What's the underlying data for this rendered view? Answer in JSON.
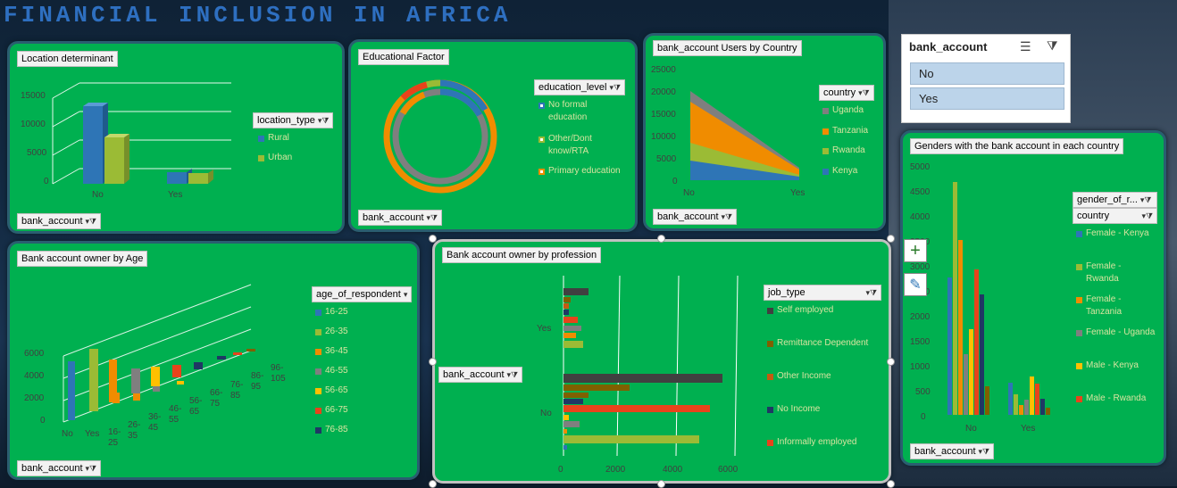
{
  "dashboard": {
    "title": "FINANCIAL INCLUSION IN AFRICA"
  },
  "location": {
    "title": "Location determinant",
    "filter": "location_type",
    "axis_filter": "bank_account",
    "y_ticks": [
      "15000",
      "10000",
      "5000",
      "0"
    ],
    "legend": [
      {
        "label": "Rural",
        "color": "#2e75b6"
      },
      {
        "label": "Urban",
        "color": "#9bbb35"
      }
    ]
  },
  "education": {
    "title": "Educational Factor",
    "filter": "education_level",
    "axis_filter": "bank_account",
    "legend": [
      {
        "label": "No formal education",
        "color": "#2e75b6"
      },
      {
        "label": "Other/Dont know/RTA",
        "color": "#9bbb35"
      },
      {
        "label": "Primary education",
        "color": "#f08c00"
      }
    ]
  },
  "country_users": {
    "title": "bank_account Users by Country",
    "filter": "country",
    "axis_filter": "bank_account",
    "y_ticks": [
      "25000",
      "20000",
      "15000",
      "10000",
      "5000",
      "0"
    ],
    "legend": [
      {
        "label": "Uganda",
        "color": "#7f7f7f"
      },
      {
        "label": "Tanzania",
        "color": "#f08c00"
      },
      {
        "label": "Rwanda",
        "color": "#9bbb35"
      },
      {
        "label": "Kenya",
        "color": "#2e75b6"
      }
    ]
  },
  "slicer": {
    "title": "bank_account",
    "items": [
      "No",
      "Yes"
    ]
  },
  "age": {
    "title": "Bank account owner by Age",
    "filter": "age_of_respondent",
    "axis_filter": "bank_account",
    "y_ticks": [
      "6000",
      "4000",
      "2000",
      "0"
    ],
    "x_labels": [
      "No",
      "Yes",
      "16-\n25",
      "26-\n35",
      "36-\n45",
      "46-\n55",
      "56-\n65",
      "66-\n75",
      "76-\n85",
      "86-\n95",
      "96-\n105"
    ],
    "legend": [
      {
        "label": "16-25",
        "color": "#2e75b6"
      },
      {
        "label": "26-35",
        "color": "#9bbb35"
      },
      {
        "label": "36-45",
        "color": "#f08c00"
      },
      {
        "label": "46-55",
        "color": "#7f7f7f"
      },
      {
        "label": "56-65",
        "color": "#ffc000"
      },
      {
        "label": "66-75",
        "color": "#e8431b"
      },
      {
        "label": "76-85",
        "color": "#1f3864"
      }
    ]
  },
  "profession": {
    "title": "Bank account owner by profession",
    "filter": "job_type",
    "axis_filter": "bank_account",
    "cat_labels": [
      "Yes",
      "No"
    ],
    "x_ticks": [
      "0",
      "2000",
      "4000",
      "6000"
    ],
    "legend": [
      {
        "label": "Self employed",
        "color": "#404040"
      },
      {
        "label": "Remittance Dependent",
        "color": "#7f6000"
      },
      {
        "label": "Other Income",
        "color": "#c55a11"
      },
      {
        "label": "No Income",
        "color": "#1f3864"
      },
      {
        "label": "Informally employed",
        "color": "#e8431b"
      }
    ]
  },
  "gender": {
    "title": "Genders with the bank account in each country",
    "filter1": "gender_of_r...",
    "filter2": "country",
    "axis_filter": "bank_account",
    "y_ticks": [
      "5000",
      "4500",
      "4000",
      "3500",
      "3000",
      "2500",
      "2000",
      "1500",
      "1000",
      "500",
      "0"
    ],
    "x_labels": [
      "No",
      "Yes"
    ],
    "legend": [
      {
        "label": "Female - Kenya",
        "color": "#2e75b6"
      },
      {
        "label": "Female - Rwanda",
        "color": "#9bbb35"
      },
      {
        "label": "Female - Tanzania",
        "color": "#f08c00"
      },
      {
        "label": "Female - Uganda",
        "color": "#7f7f7f"
      },
      {
        "label": "Male - Kenya",
        "color": "#ffc000"
      },
      {
        "label": "Male - Rwanda",
        "color": "#e8431b"
      }
    ]
  }
}
